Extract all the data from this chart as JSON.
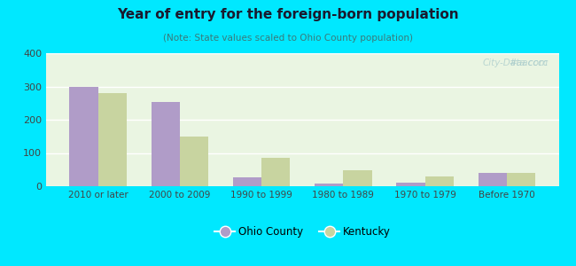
{
  "title": "Year of entry for the foreign-born population",
  "subtitle": "(Note: State values scaled to Ohio County population)",
  "categories": [
    "2010 or later",
    "2000 to 2009",
    "1990 to 1999",
    "1980 to 1989",
    "1970 to 1979",
    "Before 1970"
  ],
  "ohio_county": [
    298,
    253,
    28,
    8,
    10,
    40
  ],
  "kentucky": [
    280,
    150,
    85,
    47,
    30,
    40
  ],
  "ohio_color": "#b09cc8",
  "kentucky_color": "#c8d4a0",
  "background_outer": "#00e8ff",
  "background_inner": "#eaf5e2",
  "ylim": [
    0,
    400
  ],
  "yticks": [
    0,
    100,
    200,
    300,
    400
  ],
  "bar_width": 0.35,
  "legend_labels": [
    "Ohio County",
    "Kentucky"
  ],
  "title_color": "#1a1a2e",
  "subtitle_color": "#3a7a7a",
  "watermark_color": "#aacccc"
}
